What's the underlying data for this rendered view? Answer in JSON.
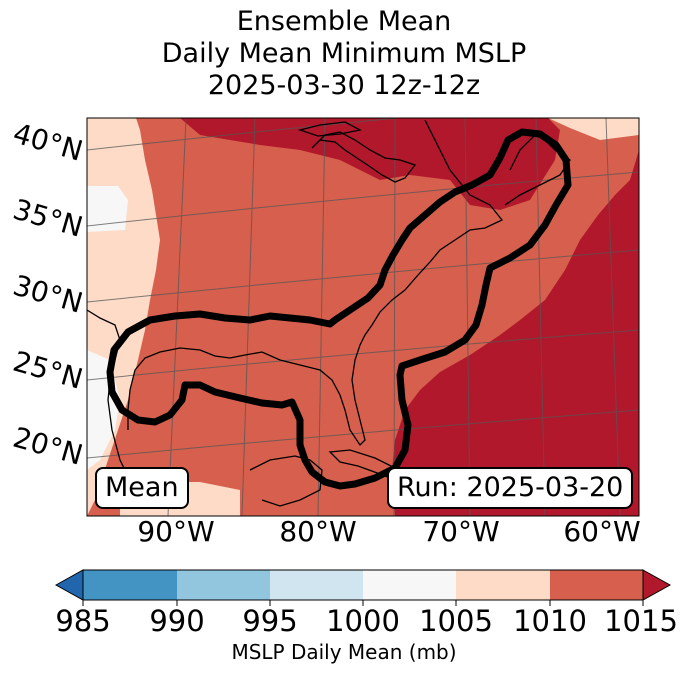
{
  "title": {
    "line1": "Ensemble Mean",
    "line2": "Daily Mean Minimum MSLP",
    "line3": "2025-03-30 12z-12z"
  },
  "map": {
    "lat_labels": [
      "40°N",
      "35°N",
      "30°N",
      "25°N",
      "20°N"
    ],
    "lon_labels": [
      "90°W",
      "80°W",
      "70°W",
      "60°W"
    ],
    "mean_box": "Mean",
    "run_box": "Run: 2025-03-20"
  },
  "colorbar": {
    "ticks": [
      "985",
      "990",
      "995",
      "1000",
      "1005",
      "1010",
      "1015"
    ],
    "label": "MSLP Daily Mean (mb)",
    "colors": [
      "#2166ac",
      "#4393c3",
      "#92c5de",
      "#d1e5f0",
      "#f7f7f7",
      "#fddbc7",
      "#d6604d",
      "#b2182b"
    ]
  }
}
